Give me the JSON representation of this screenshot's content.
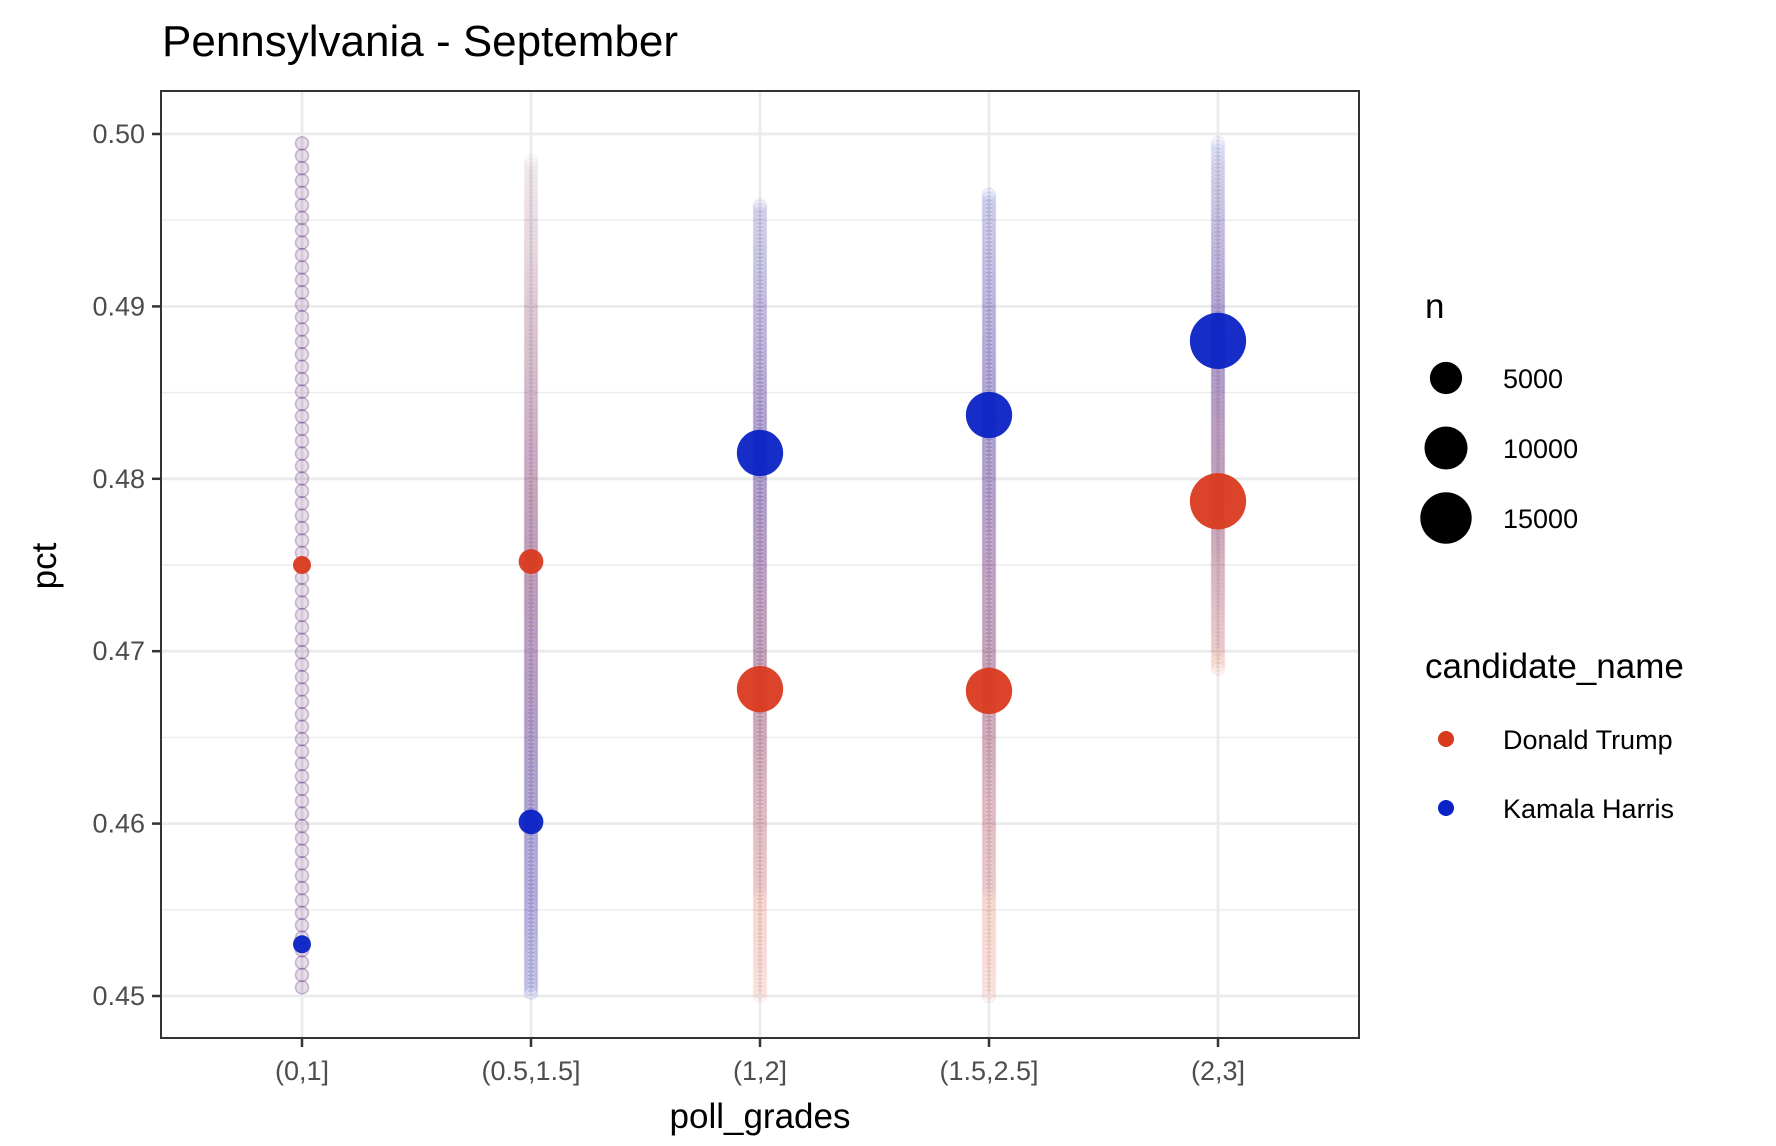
{
  "chart_data": {
    "type": "scatter",
    "title": "Pennsylvania - September",
    "xlabel": "poll_grades",
    "ylabel": "pct",
    "categories": [
      "(0,1]",
      "(0.5,1.5]",
      "(1,2]",
      "(1.5,2.5]",
      "(2,3]"
    ],
    "ylim": [
      0.4475,
      0.5025
    ],
    "yticks": [
      0.45,
      0.46,
      0.47,
      0.48,
      0.49,
      0.5
    ],
    "ytick_labels": [
      "0.45",
      "0.46",
      "0.47",
      "0.48",
      "0.49",
      "0.50"
    ],
    "grid": true,
    "series": [
      {
        "name": "Donald Trump",
        "color": "#d93a1f",
        "values": [
          0.475,
          0.4752,
          0.4678,
          0.4677,
          0.4787
        ],
        "n": [
          1200,
          3000,
          10500,
          10500,
          15500
        ],
        "spread": [
          [
            0.4505,
            0.5
          ],
          [
            0.4505,
            0.4985
          ],
          [
            0.45,
            0.496
          ],
          [
            0.45,
            0.496
          ],
          [
            0.469,
            0.4985
          ]
        ]
      },
      {
        "name": "Kamala Harris",
        "color": "#0a22c4",
        "values": [
          0.453,
          0.4601,
          0.4815,
          0.4837,
          0.488
        ],
        "n": [
          1200,
          3000,
          10500,
          10500,
          15500
        ],
        "spread": [
          [
            0.4505,
            0.5
          ],
          [
            0.4502,
            0.4985
          ],
          [
            0.456,
            0.496
          ],
          [
            0.456,
            0.4965
          ],
          [
            0.47,
            0.4995
          ]
        ]
      }
    ],
    "size_legend": {
      "title": "n",
      "breaks": [
        5000,
        10000,
        15000
      ],
      "labels": [
        "5000",
        "10000",
        "15000"
      ]
    },
    "color_legend": {
      "title": "candidate_name",
      "entries": [
        {
          "label": "Donald Trump",
          "color": "#d93a1f"
        },
        {
          "label": "Kamala Harris",
          "color": "#0a22c4"
        }
      ]
    },
    "legend_position": "right"
  }
}
